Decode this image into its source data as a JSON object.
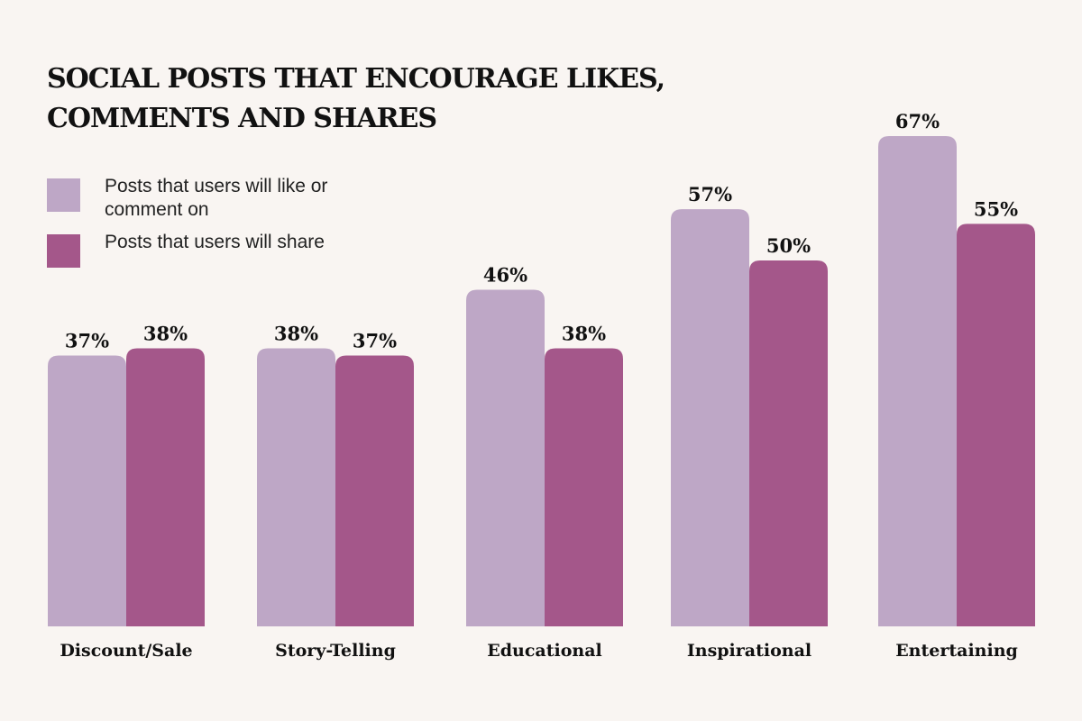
{
  "chart_data": {
    "type": "bar",
    "title_lines": [
      "SOCIAL POSTS THAT ENCOURAGE LIKES,",
      "COMMENTS AND SHARES"
    ],
    "categories": [
      "Discount/Sale",
      "Story-Telling",
      "Educational",
      "Inspirational",
      "Entertaining"
    ],
    "series": [
      {
        "name": "Posts that users will like or comment on",
        "color": "#bea7c6",
        "values": [
          37,
          38,
          46,
          57,
          67
        ],
        "labels": [
          "37%",
          "38%",
          "46%",
          "57%",
          "67%"
        ]
      },
      {
        "name": "Posts that users will share",
        "color": "#a4578a",
        "values": [
          38,
          37,
          38,
          50,
          55
        ],
        "labels": [
          "38%",
          "37%",
          "38%",
          "50%",
          "55%"
        ]
      }
    ],
    "unit": "%",
    "ylim": [
      0,
      100
    ],
    "grid": false,
    "legend_position": "top-left"
  }
}
